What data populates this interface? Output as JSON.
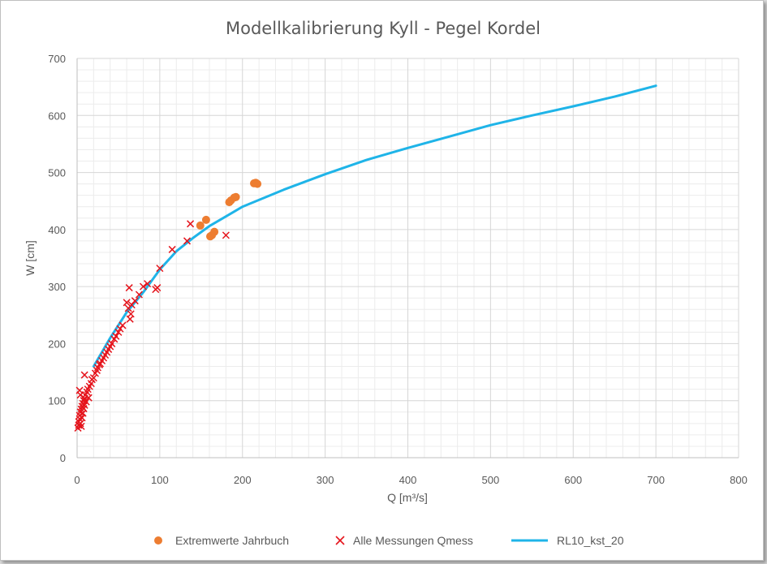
{
  "chart_data": {
    "type": "scatter",
    "title": "Modellkalibrierung Kyll - Pegel Kordel",
    "xlabel": "Q [m³/s]",
    "ylabel": "W [cm]",
    "xlim": [
      0,
      800
    ],
    "ylim": [
      0,
      700
    ],
    "x_ticks": [
      0,
      100,
      200,
      300,
      400,
      500,
      600,
      700,
      800
    ],
    "y_ticks": [
      0,
      100,
      200,
      300,
      400,
      500,
      600,
      700
    ],
    "grid": true,
    "minor_grid": true,
    "legend_position": "bottom",
    "series": [
      {
        "name": "Extremwerte Jahrbuch",
        "kind": "scatter",
        "marker": "circle",
        "color": "#ED7D31",
        "points": [
          [
            149,
            407
          ],
          [
            156,
            417
          ],
          [
            161,
            388
          ],
          [
            163,
            390
          ],
          [
            166,
            396
          ],
          [
            184,
            448
          ],
          [
            186,
            451
          ],
          [
            190,
            456
          ],
          [
            192,
            457
          ],
          [
            214,
            481
          ],
          [
            216,
            482
          ],
          [
            218,
            480
          ]
        ]
      },
      {
        "name": "Alle Messungen Qmess",
        "kind": "scatter",
        "marker": "x",
        "color": "#E5141C",
        "points": [
          [
            1,
            52
          ],
          [
            2,
            57
          ],
          [
            2,
            63
          ],
          [
            3,
            68
          ],
          [
            3,
            74
          ],
          [
            4,
            60
          ],
          [
            4,
            80
          ],
          [
            5,
            55
          ],
          [
            5,
            85
          ],
          [
            6,
            70
          ],
          [
            6,
            90
          ],
          [
            7,
            78
          ],
          [
            7,
            95
          ],
          [
            8,
            100
          ],
          [
            8,
            86
          ],
          [
            9,
            104
          ],
          [
            9,
            92
          ],
          [
            10,
            110
          ],
          [
            11,
            98
          ],
          [
            12,
            115
          ],
          [
            13,
            120
          ],
          [
            14,
            105
          ],
          [
            15,
            125
          ],
          [
            17,
            130
          ],
          [
            18,
            137
          ],
          [
            20,
            140
          ],
          [
            22,
            148
          ],
          [
            24,
            153
          ],
          [
            25,
            158
          ],
          [
            27,
            163
          ],
          [
            28,
            165
          ],
          [
            30,
            170
          ],
          [
            32,
            175
          ],
          [
            34,
            180
          ],
          [
            36,
            185
          ],
          [
            38,
            190
          ],
          [
            40,
            195
          ],
          [
            42,
            200
          ],
          [
            45,
            208
          ],
          [
            47,
            213
          ],
          [
            50,
            220
          ],
          [
            52,
            226
          ],
          [
            55,
            232
          ],
          [
            60,
            272
          ],
          [
            62,
            262
          ],
          [
            63,
            298
          ],
          [
            64,
            243
          ],
          [
            65,
            252
          ],
          [
            66,
            268
          ],
          [
            70,
            275
          ],
          [
            75,
            286
          ],
          [
            80,
            300
          ],
          [
            85,
            305
          ],
          [
            95,
            295
          ],
          [
            97,
            298
          ],
          [
            100,
            332
          ],
          [
            115,
            365
          ],
          [
            133,
            380
          ],
          [
            137,
            410
          ],
          [
            180,
            390
          ],
          [
            4,
            110
          ],
          [
            9,
            145
          ],
          [
            3,
            118
          ]
        ]
      },
      {
        "name": "RL10_kst_20",
        "kind": "line",
        "color": "#1FB4E8",
        "points": [
          [
            20,
            160
          ],
          [
            40,
            210
          ],
          [
            60,
            255
          ],
          [
            80,
            290
          ],
          [
            100,
            330
          ],
          [
            120,
            362
          ],
          [
            140,
            385
          ],
          [
            160,
            406
          ],
          [
            180,
            423
          ],
          [
            200,
            440
          ],
          [
            250,
            470
          ],
          [
            300,
            497
          ],
          [
            350,
            522
          ],
          [
            400,
            543
          ],
          [
            450,
            563
          ],
          [
            500,
            583
          ],
          [
            550,
            600
          ],
          [
            600,
            616
          ],
          [
            650,
            633
          ],
          [
            700,
            652
          ]
        ]
      }
    ]
  }
}
